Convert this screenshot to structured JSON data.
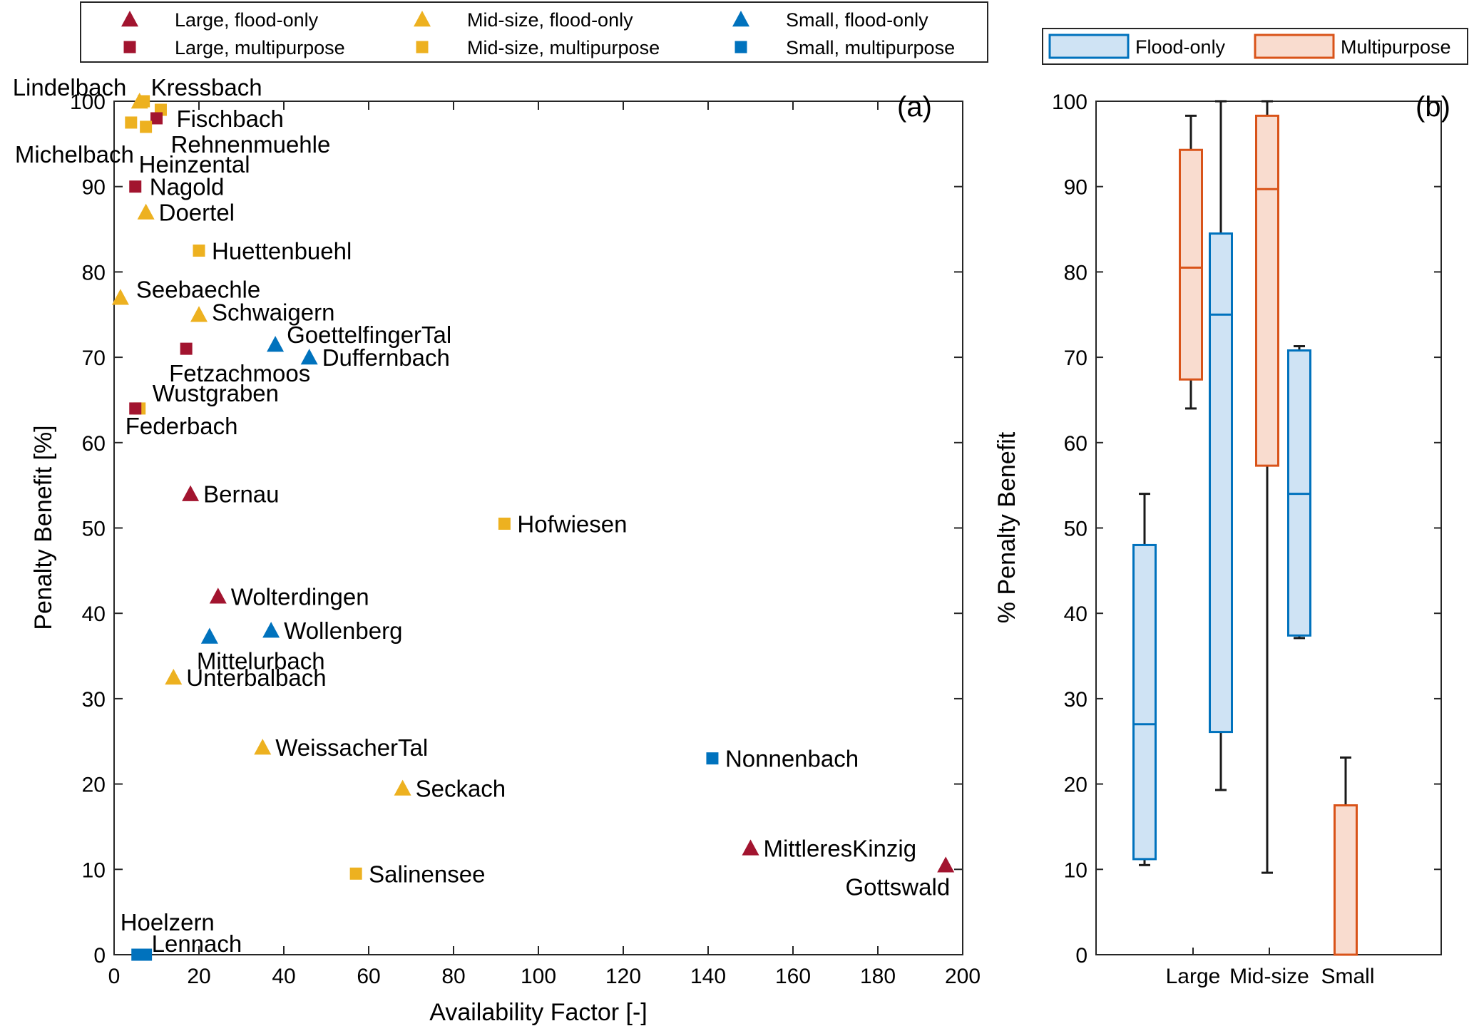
{
  "colors": {
    "large": "#a2142f",
    "mid": "#edb120",
    "small": "#0072bd",
    "flood_box_edge": "#0072bd",
    "flood_box_fill": "#cfe3f4",
    "multi_box_edge": "#d95319",
    "multi_box_fill": "#f9dccf"
  },
  "chart_data": [
    {
      "type": "scatter",
      "panel_label": "(a)",
      "xlabel": "Availability Factor [-]",
      "ylabel": "Penalty Benefit [%]",
      "xlim": [
        0,
        200
      ],
      "ylim": [
        0,
        100
      ],
      "xticks": [
        0,
        20,
        40,
        60,
        80,
        100,
        120,
        140,
        160,
        180,
        200
      ],
      "yticks": [
        0,
        10,
        20,
        30,
        40,
        50,
        60,
        70,
        80,
        90,
        100
      ],
      "legend": [
        {
          "label": "Large, flood-only",
          "size": "large",
          "purpose": "flood"
        },
        {
          "label": "Large, multipurpose",
          "size": "large",
          "purpose": "multi"
        },
        {
          "label": "Mid-size, flood-only",
          "size": "mid",
          "purpose": "flood"
        },
        {
          "label": "Mid-size, multipurpose",
          "size": "mid",
          "purpose": "multi"
        },
        {
          "label": "Small, flood-only",
          "size": "small",
          "purpose": "flood"
        },
        {
          "label": "Small, multipurpose",
          "size": "small",
          "purpose": "multi"
        }
      ],
      "points": [
        {
          "name": "Lindelbach",
          "x": 6,
          "y": 100,
          "size": "mid",
          "purpose": "flood"
        },
        {
          "name": "Kressbach",
          "x": 7,
          "y": 100,
          "size": "mid",
          "purpose": "multi"
        },
        {
          "name": "Fischbach",
          "x": 11,
          "y": 99,
          "size": "mid",
          "purpose": "multi"
        },
        {
          "name": "Rehnenmuehle",
          "x": 10,
          "y": 98,
          "size": "large",
          "purpose": "multi"
        },
        {
          "name": "Michelbach",
          "x": 4,
          "y": 97.5,
          "size": "mid",
          "purpose": "multi"
        },
        {
          "name": "Heinzental",
          "x": 7.5,
          "y": 97,
          "size": "mid",
          "purpose": "multi"
        },
        {
          "name": "Nagold",
          "x": 5,
          "y": 90,
          "size": "large",
          "purpose": "multi"
        },
        {
          "name": "Doertel",
          "x": 7.5,
          "y": 87,
          "size": "mid",
          "purpose": "flood"
        },
        {
          "name": "Huettenbuehl",
          "x": 20,
          "y": 82.5,
          "size": "mid",
          "purpose": "multi"
        },
        {
          "name": "Seebaechle",
          "x": 1.5,
          "y": 77,
          "size": "mid",
          "purpose": "flood"
        },
        {
          "name": "Schwaigern",
          "x": 20,
          "y": 75,
          "size": "mid",
          "purpose": "flood"
        },
        {
          "name": "GoettelfingerTal",
          "x": 38,
          "y": 71.5,
          "size": "small",
          "purpose": "flood"
        },
        {
          "name": "Fetzachmoos",
          "x": 17,
          "y": 71,
          "size": "large",
          "purpose": "multi"
        },
        {
          "name": "Duffernbach",
          "x": 46,
          "y": 70,
          "size": "small",
          "purpose": "flood"
        },
        {
          "name": "Wustgraben",
          "x": 6,
          "y": 64,
          "size": "mid",
          "purpose": "multi"
        },
        {
          "name": "Federbach",
          "x": 5,
          "y": 64,
          "size": "large",
          "purpose": "multi"
        },
        {
          "name": "Bernau",
          "x": 18,
          "y": 54,
          "size": "large",
          "purpose": "flood"
        },
        {
          "name": "Hofwiesen",
          "x": 92,
          "y": 50.5,
          "size": "mid",
          "purpose": "multi"
        },
        {
          "name": "Wolterdingen",
          "x": 24.5,
          "y": 42,
          "size": "large",
          "purpose": "flood"
        },
        {
          "name": "Wollenberg",
          "x": 37,
          "y": 38,
          "size": "small",
          "purpose": "flood"
        },
        {
          "name": "Mittelurbach",
          "x": 22.5,
          "y": 37.3,
          "size": "small",
          "purpose": "flood"
        },
        {
          "name": "Unterbalbach",
          "x": 14,
          "y": 32.5,
          "size": "mid",
          "purpose": "flood"
        },
        {
          "name": "WeissacherTal",
          "x": 35,
          "y": 24.3,
          "size": "mid",
          "purpose": "flood"
        },
        {
          "name": "Nonnenbach",
          "x": 141,
          "y": 23,
          "size": "small",
          "purpose": "multi"
        },
        {
          "name": "Seckach",
          "x": 68,
          "y": 19.5,
          "size": "mid",
          "purpose": "flood"
        },
        {
          "name": "MittleresKinzig",
          "x": 150,
          "y": 12.5,
          "size": "large",
          "purpose": "flood"
        },
        {
          "name": "Gottswald",
          "x": 196,
          "y": 10.5,
          "size": "large",
          "purpose": "flood"
        },
        {
          "name": "Salinensee",
          "x": 57,
          "y": 9.5,
          "size": "mid",
          "purpose": "multi"
        },
        {
          "name": "Hoelzern",
          "x": 5.5,
          "y": 0,
          "size": "small",
          "purpose": "multi"
        },
        {
          "name": "Lennach",
          "x": 7.5,
          "y": 0,
          "size": "small",
          "purpose": "multi"
        }
      ]
    },
    {
      "type": "box",
      "panel_label": "(b)",
      "ylabel": "% Penalty Benefit",
      "ylim": [
        0,
        100
      ],
      "yticks": [
        0,
        10,
        20,
        30,
        40,
        50,
        60,
        70,
        80,
        90,
        100
      ],
      "categories": [
        "Large",
        "Mid-size",
        "Small"
      ],
      "legend": [
        "Flood-only",
        "Multipurpose"
      ],
      "series": [
        {
          "name": "Flood-only",
          "boxes": [
            {
              "min": 10.5,
              "q1": 11.2,
              "median": 27,
              "q3": 48,
              "max": 54
            },
            {
              "min": 19.3,
              "q1": 26.1,
              "median": 75,
              "q3": 84.5,
              "max": 100
            },
            {
              "min": 37.1,
              "q1": 37.4,
              "median": 54,
              "q3": 70.8,
              "max": 71.3
            }
          ]
        },
        {
          "name": "Multipurpose",
          "boxes": [
            {
              "min": 64,
              "q1": 67.4,
              "median": 80.5,
              "q3": 94.3,
              "max": 98.3
            },
            {
              "min": 9.6,
              "q1": 57.3,
              "median": 89.7,
              "q3": 98.3,
              "max": 100
            },
            {
              "min": 0,
              "q1": 0,
              "median": 0,
              "q3": 17.5,
              "max": 23.1
            }
          ]
        }
      ]
    }
  ]
}
